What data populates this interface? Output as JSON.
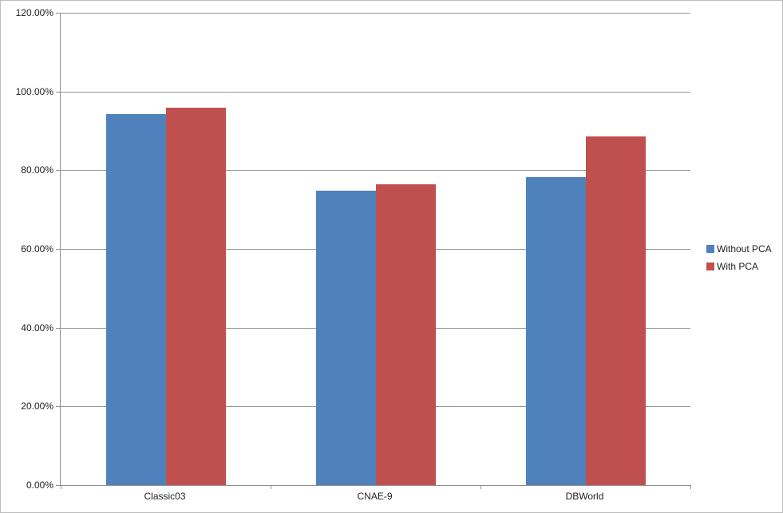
{
  "chart": {
    "background": "#ffffff",
    "border_color": "#bdbdbd",
    "gridline_color": "#979797",
    "axis_color": "#8e8e8e",
    "text_color": "#1f1f1f"
  },
  "chart_data": {
    "type": "bar",
    "title": "",
    "xlabel": "",
    "ylabel": "",
    "categories": [
      "Classic03",
      "CNAE-9",
      "DBWorld"
    ],
    "series": [
      {
        "name": "Without PCA",
        "color": "#4F81BD",
        "values": [
          94.2,
          74.8,
          78.2
        ]
      },
      {
        "name": "With PCA",
        "color": "#C0504D",
        "values": [
          95.8,
          76.4,
          88.6
        ]
      }
    ],
    "ylim": [
      0,
      120
    ],
    "ytick_step": 20,
    "ytick_labels": [
      "0.00%",
      "20.00%",
      "40.00%",
      "60.00%",
      "80.00%",
      "100.00%",
      "120.00%"
    ],
    "grid": true,
    "legend": {
      "position": "right",
      "entries": [
        "Without PCA",
        "With PCA"
      ]
    }
  }
}
